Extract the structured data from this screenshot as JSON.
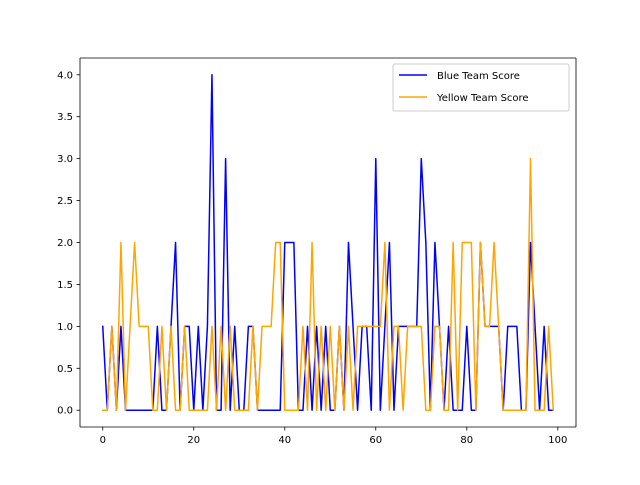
{
  "chart_data": {
    "type": "line",
    "title": "",
    "xlabel": "",
    "ylabel": "",
    "xlim": [
      -5,
      104
    ],
    "ylim": [
      -0.2,
      4.2
    ],
    "xticks": [
      0,
      20,
      40,
      60,
      80,
      100
    ],
    "yticks": [
      0.0,
      0.5,
      1.0,
      1.5,
      2.0,
      2.5,
      3.0,
      3.5,
      4.0
    ],
    "ytick_labels": [
      "0.0",
      "0.5",
      "1.0",
      "1.5",
      "2.0",
      "2.5",
      "3.0",
      "3.5",
      "4.0"
    ],
    "xtick_labels": [
      "0",
      "20",
      "40",
      "60",
      "80",
      "100"
    ],
    "grid": false,
    "legend_position": "top-right",
    "x": [
      0,
      1,
      2,
      3,
      4,
      5,
      6,
      7,
      8,
      9,
      10,
      11,
      12,
      13,
      14,
      15,
      16,
      17,
      18,
      19,
      20,
      21,
      22,
      23,
      24,
      25,
      26,
      27,
      28,
      29,
      30,
      31,
      32,
      33,
      34,
      35,
      36,
      37,
      38,
      39,
      40,
      41,
      42,
      43,
      44,
      45,
      46,
      47,
      48,
      49,
      50,
      51,
      52,
      53,
      54,
      55,
      56,
      57,
      58,
      59,
      60,
      61,
      62,
      63,
      64,
      65,
      66,
      67,
      68,
      69,
      70,
      71,
      72,
      73,
      74,
      75,
      76,
      77,
      78,
      79,
      80,
      81,
      82,
      83,
      84,
      85,
      86,
      87,
      88,
      89,
      90,
      91,
      92,
      93,
      94,
      95,
      96,
      97,
      98,
      99
    ],
    "series": [
      {
        "name": "Blue Team Score",
        "color": "#0000ff",
        "values": [
          1,
          0,
          1,
          0,
          1,
          0,
          0,
          0,
          0,
          0,
          0,
          0,
          1,
          0,
          0,
          1,
          2,
          0,
          1,
          1,
          0,
          1,
          0,
          1,
          4,
          0,
          0,
          3,
          0,
          1,
          0,
          0,
          1,
          1,
          0,
          0,
          0,
          0,
          0,
          0,
          2,
          2,
          2,
          0,
          0,
          1,
          0,
          1,
          0,
          1,
          0,
          0,
          1,
          0,
          2,
          1,
          0,
          1,
          1,
          0,
          3,
          0,
          1,
          2,
          0,
          1,
          1,
          1,
          1,
          1,
          3,
          2,
          0,
          2,
          1,
          0,
          1,
          0,
          0,
          0,
          1,
          0,
          0,
          2,
          1,
          1,
          1,
          1,
          0,
          1,
          1,
          1,
          0,
          0,
          2,
          1,
          0,
          1,
          0,
          0
        ]
      },
      {
        "name": "Yellow Team Score",
        "color": "#ffa500",
        "values": [
          0,
          0,
          1,
          0,
          2,
          0,
          1,
          2,
          1,
          1,
          1,
          0,
          0,
          1,
          0,
          1,
          0,
          0,
          1,
          0,
          0,
          0,
          0,
          0,
          1,
          0,
          1,
          0,
          1,
          0,
          0,
          0,
          0,
          1,
          0,
          1,
          1,
          1,
          2,
          2,
          0,
          0,
          0,
          0,
          1,
          0,
          2,
          0,
          1,
          0,
          1,
          0,
          1,
          0,
          1,
          0,
          1,
          1,
          1,
          1,
          1,
          1,
          2,
          0,
          1,
          1,
          0,
          1,
          1,
          1,
          1,
          0,
          0,
          1,
          1,
          0,
          0,
          2,
          0,
          2,
          2,
          2,
          0,
          2,
          1,
          1,
          2,
          1,
          0,
          0,
          0,
          0,
          0,
          0,
          3,
          0,
          0,
          0,
          1,
          0
        ]
      }
    ]
  }
}
